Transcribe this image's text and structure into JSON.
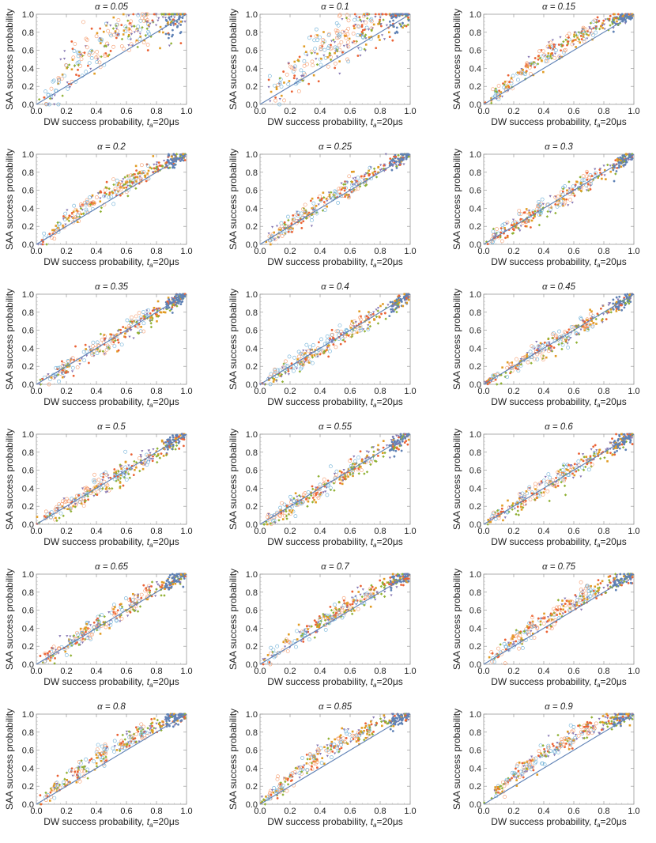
{
  "figure": {
    "xlabel_main": "DW success probability, ",
    "xlabel_t": "t",
    "xlabel_sub": "a",
    "xlabel_end": "=20μs",
    "ylabel": "SAA success probability",
    "ticks": [
      "0.0",
      "0.2",
      "0.4",
      "0.6",
      "0.8",
      "1.0"
    ],
    "series_colors": [
      "#5e81b5",
      "#e19c24",
      "#8fb032",
      "#eb6235",
      "#8778b3",
      "#f59a6b",
      "#6aaed6"
    ]
  },
  "chart_data": [
    {
      "type": "scatter",
      "title": "α = 0.05",
      "alpha": 0.05,
      "xlim": [
        0,
        1
      ],
      "ylim": [
        0,
        1
      ],
      "reference_line": "y = x"
    },
    {
      "type": "scatter",
      "title": "α = 0.1",
      "alpha": 0.1,
      "xlim": [
        0,
        1
      ],
      "ylim": [
        0,
        1
      ],
      "reference_line": "y = x"
    },
    {
      "type": "scatter",
      "title": "α = 0.15",
      "alpha": 0.15,
      "xlim": [
        0,
        1
      ],
      "ylim": [
        0,
        1
      ],
      "reference_line": "y = x"
    },
    {
      "type": "scatter",
      "title": "α = 0.2",
      "alpha": 0.2,
      "xlim": [
        0,
        1
      ],
      "ylim": [
        0,
        1
      ],
      "reference_line": "y = x"
    },
    {
      "type": "scatter",
      "title": "α = 0.25",
      "alpha": 0.25,
      "xlim": [
        0,
        1
      ],
      "ylim": [
        0,
        1
      ],
      "reference_line": "y = x"
    },
    {
      "type": "scatter",
      "title": "α = 0.3",
      "alpha": 0.3,
      "xlim": [
        0,
        1
      ],
      "ylim": [
        0,
        1
      ],
      "reference_line": "y = x"
    },
    {
      "type": "scatter",
      "title": "α = 0.35",
      "alpha": 0.35,
      "xlim": [
        0,
        1
      ],
      "ylim": [
        0,
        1
      ],
      "reference_line": "y = x"
    },
    {
      "type": "scatter",
      "title": "α = 0.4",
      "alpha": 0.4,
      "xlim": [
        0,
        1
      ],
      "ylim": [
        0,
        1
      ],
      "reference_line": "y = x"
    },
    {
      "type": "scatter",
      "title": "α = 0.45",
      "alpha": 0.45,
      "xlim": [
        0,
        1
      ],
      "ylim": [
        0,
        1
      ],
      "reference_line": "y = x"
    },
    {
      "type": "scatter",
      "title": "α = 0.5",
      "alpha": 0.5,
      "xlim": [
        0,
        1
      ],
      "ylim": [
        0,
        1
      ],
      "reference_line": "y = x"
    },
    {
      "type": "scatter",
      "title": "α = 0.55",
      "alpha": 0.55,
      "xlim": [
        0,
        1
      ],
      "ylim": [
        0,
        1
      ],
      "reference_line": "y = x"
    },
    {
      "type": "scatter",
      "title": "α = 0.6",
      "alpha": 0.6,
      "xlim": [
        0,
        1
      ],
      "ylim": [
        0,
        1
      ],
      "reference_line": "y = x"
    },
    {
      "type": "scatter",
      "title": "α = 0.65",
      "alpha": 0.65,
      "xlim": [
        0,
        1
      ],
      "ylim": [
        0,
        1
      ],
      "reference_line": "y = x"
    },
    {
      "type": "scatter",
      "title": "α = 0.7",
      "alpha": 0.7,
      "xlim": [
        0,
        1
      ],
      "ylim": [
        0,
        1
      ],
      "reference_line": "y = x"
    },
    {
      "type": "scatter",
      "title": "α = 0.75",
      "alpha": 0.75,
      "xlim": [
        0,
        1
      ],
      "ylim": [
        0,
        1
      ],
      "reference_line": "y = x"
    },
    {
      "type": "scatter",
      "title": "α = 0.8",
      "alpha": 0.8,
      "xlim": [
        0,
        1
      ],
      "ylim": [
        0,
        1
      ],
      "reference_line": "y = x"
    },
    {
      "type": "scatter",
      "title": "α = 0.85",
      "alpha": 0.85,
      "xlim": [
        0,
        1
      ],
      "ylim": [
        0,
        1
      ],
      "reference_line": "y = x"
    },
    {
      "type": "scatter",
      "title": "α = 0.9",
      "alpha": 0.9,
      "xlim": [
        0,
        1
      ],
      "ylim": [
        0,
        1
      ],
      "reference_line": "y = x"
    }
  ]
}
